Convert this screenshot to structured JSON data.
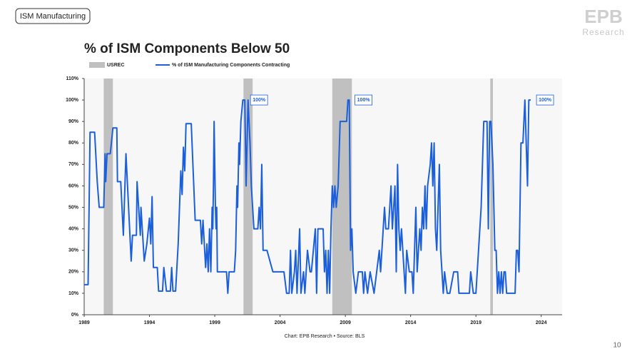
{
  "header": {
    "tag": "ISM Manufacturing",
    "logo": "EPB",
    "logo_sub": "Research",
    "page_number": "10"
  },
  "chart_data": {
    "type": "line",
    "title": "% of ISM Components Below 50",
    "source": "Chart: EPB Research • Source: BLS",
    "shading": {
      "name": "USREC",
      "color": "#c0c0c0",
      "periods": [
        [
          1990.5,
          1991.2
        ],
        [
          2001.2,
          2001.9
        ],
        [
          2008.0,
          2009.5
        ],
        [
          2020.1,
          2020.3
        ]
      ]
    },
    "x": [
      1989.0,
      1989.3,
      1989.45,
      1989.8,
      1990.0,
      1990.15,
      1990.5,
      1990.6,
      1990.65,
      1990.75,
      1991.0,
      1991.2,
      1991.5,
      1991.55,
      1991.8,
      1992.0,
      1992.2,
      1992.4,
      1992.6,
      1992.7,
      1993.0,
      1993.05,
      1993.3,
      1993.35,
      1993.6,
      1993.8,
      1994.0,
      1994.1,
      1994.2,
      1994.3,
      1994.6,
      1994.7,
      1995.0,
      1995.1,
      1995.3,
      1995.6,
      1995.7,
      1995.8,
      1996.0,
      1996.2,
      1996.4,
      1996.5,
      1996.6,
      1996.7,
      1996.8,
      1997.2,
      1997.5,
      1997.9,
      1998.0,
      1998.1,
      1998.3,
      1998.4,
      1998.5,
      1998.6,
      1998.7,
      1998.8,
      1998.85,
      1998.9,
      1998.95,
      1999.05,
      1999.1,
      1999.15,
      1999.2,
      1999.9,
      2000.0,
      2000.1,
      2000.5,
      2000.6,
      2000.7,
      2000.75,
      2000.85,
      2000.9,
      2001.0,
      2001.15,
      2001.3,
      2001.4,
      2001.55,
      2001.7,
      2001.8,
      2002.0,
      2002.3,
      2002.4,
      2002.5,
      2002.6,
      2002.7,
      2003.0,
      2003.45,
      2004.3,
      2004.5,
      2004.7,
      2004.8,
      2004.9,
      2005.1,
      2005.2,
      2005.3,
      2005.5,
      2005.6,
      2005.8,
      2005.9,
      2006.1,
      2006.3,
      2006.4,
      2006.7,
      2006.8,
      2006.9,
      2007.3,
      2007.4,
      2007.5,
      2007.6,
      2007.7,
      2007.8,
      2007.9,
      2008.0,
      2008.1,
      2008.2,
      2008.3,
      2008.45,
      2008.6,
      2009.1,
      2009.2,
      2009.3,
      2009.4,
      2009.5,
      2009.6,
      2009.8,
      2010.0,
      2010.3,
      2010.4,
      2010.5,
      2010.7,
      2010.9,
      2011.2,
      2011.4,
      2011.6,
      2011.7,
      2011.9,
      2012.0,
      2012.1,
      2012.3,
      2012.5,
      2012.6,
      2012.8,
      2012.9,
      2013.0,
      2013.1,
      2013.2,
      2013.3,
      2013.5,
      2013.6,
      2013.7,
      2013.9,
      2014.1,
      2014.2,
      2014.4,
      2014.5,
      2014.7,
      2014.8,
      2014.9,
      2015.0,
      2015.1,
      2015.2,
      2015.3,
      2015.5,
      2015.6,
      2015.7,
      2015.8,
      2015.9,
      2016.0,
      2016.2,
      2016.3,
      2016.5,
      2016.6,
      2016.8,
      2017.0,
      2017.3,
      2017.6,
      2017.7,
      2018.0,
      2018.5,
      2018.6,
      2018.8,
      2019.0,
      2019.2,
      2019.4,
      2019.6,
      2019.85,
      2019.95,
      2020.05,
      2020.15,
      2020.3,
      2020.45,
      2020.55,
      2020.65,
      2020.75,
      2020.85,
      2020.95,
      2021.05,
      2021.15,
      2021.25,
      2021.35,
      2021.5,
      2022.0,
      2022.1,
      2022.2,
      2022.3,
      2022.45,
      2022.6,
      2022.75,
      2022.85,
      2022.95,
      2023.05,
      2023.2
    ],
    "series": [
      {
        "name": "% of ISM Manufacturing Components Contracting",
        "color": "#1c5fdb",
        "values": [
          14,
          14,
          85,
          85,
          62,
          50,
          50,
          75,
          62,
          75,
          75,
          87,
          87,
          62,
          62,
          37,
          75,
          50,
          25,
          37,
          37,
          62,
          37,
          50,
          25,
          33,
          45,
          33,
          55,
          22,
          22,
          11,
          11,
          22,
          11,
          11,
          22,
          11,
          11,
          33,
          67,
          56,
          78,
          67,
          89,
          89,
          44,
          44,
          33,
          44,
          22,
          33,
          20,
          40,
          20,
          50,
          40,
          60,
          90,
          50,
          40,
          50,
          20,
          20,
          10,
          20,
          20,
          30,
          60,
          50,
          80,
          70,
          90,
          100,
          100,
          60,
          100,
          80,
          60,
          40,
          40,
          50,
          40,
          70,
          30,
          30,
          20,
          20,
          10,
          10,
          30,
          10,
          20,
          30,
          10,
          40,
          10,
          20,
          10,
          30,
          20,
          20,
          40,
          10,
          40,
          40,
          20,
          30,
          10,
          30,
          10,
          40,
          60,
          50,
          60,
          50,
          60,
          90,
          90,
          100,
          100,
          30,
          40,
          20,
          10,
          20,
          20,
          10,
          20,
          10,
          20,
          10,
          20,
          30,
          20,
          40,
          50,
          40,
          40,
          60,
          40,
          60,
          20,
          70,
          40,
          30,
          40,
          20,
          10,
          30,
          20,
          20,
          10,
          50,
          20,
          40,
          30,
          50,
          40,
          60,
          40,
          60,
          70,
          80,
          60,
          80,
          40,
          30,
          70,
          30,
          10,
          20,
          10,
          10,
          20,
          20,
          10,
          10,
          10,
          20,
          10,
          10,
          30,
          50,
          90,
          90,
          40,
          90,
          90,
          70,
          30,
          30,
          10,
          20,
          10,
          20,
          10,
          20,
          20,
          10,
          10,
          10,
          30,
          30,
          20,
          80,
          80,
          100,
          80,
          60,
          100,
          100
        ]
      }
    ],
    "annotations": [
      {
        "text": "100%",
        "x": 2001.3,
        "y": 100
      },
      {
        "text": "100%",
        "x": 2009.3,
        "y": 100
      },
      {
        "text": "100%",
        "x": 2023.2,
        "y": 100
      }
    ],
    "xlim": [
      1989,
      2025.6
    ],
    "xticks": [
      1989,
      1994,
      1999,
      2004,
      2009,
      2014,
      2019,
      2024
    ],
    "ylim": [
      0,
      110
    ],
    "yticks": [
      {
        "value": 0,
        "label": "0%"
      },
      {
        "value": 10,
        "label": "10%"
      },
      {
        "value": 20,
        "label": "20%"
      },
      {
        "value": 30,
        "label": "30%"
      },
      {
        "value": 40,
        "label": "40%"
      },
      {
        "value": 50,
        "label": "50%"
      },
      {
        "value": 60,
        "label": "60%"
      },
      {
        "value": 70,
        "label": "70%"
      },
      {
        "value": 80,
        "label": "80%"
      },
      {
        "value": 90,
        "label": "90%"
      },
      {
        "value": 100,
        "label": "100%"
      },
      {
        "value": 110,
        "label": "110%"
      }
    ],
    "grid": false
  }
}
